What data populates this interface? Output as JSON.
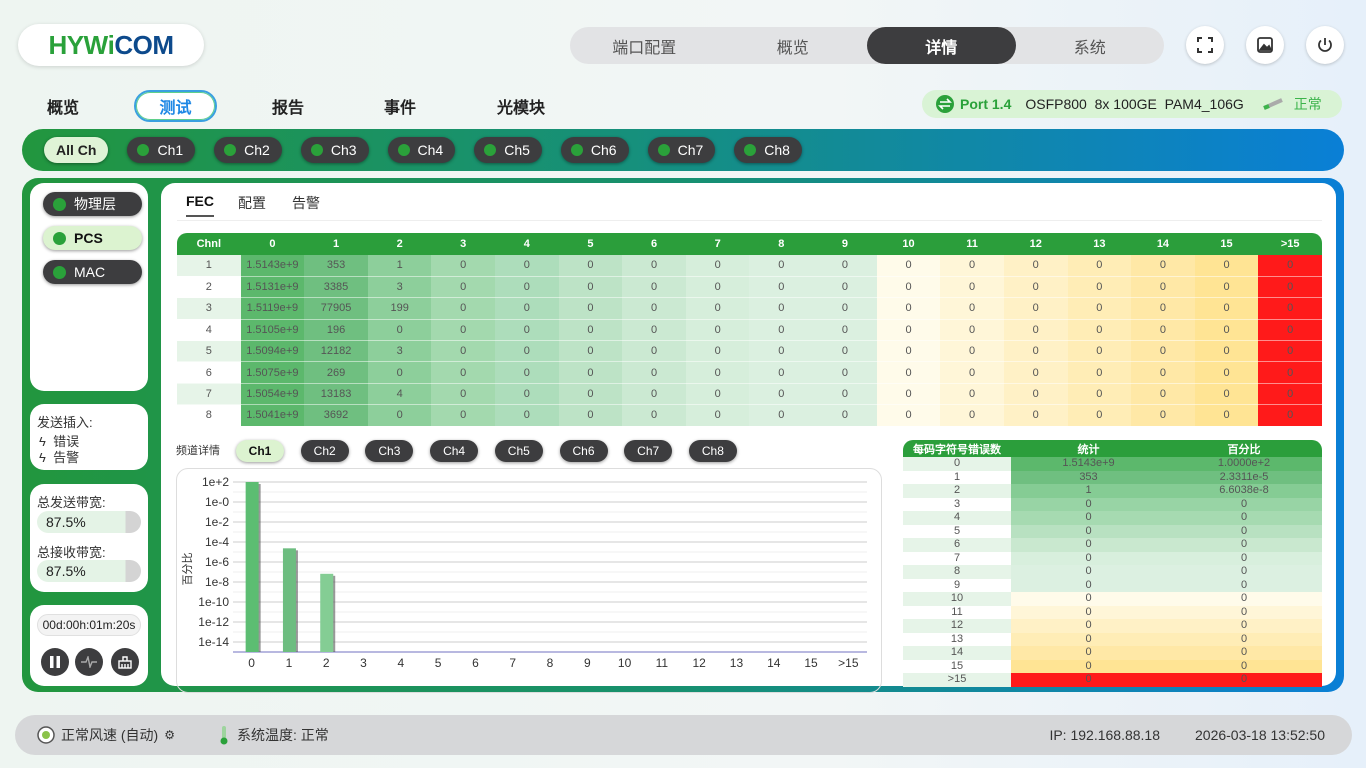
{
  "logo": {
    "text_a": "HYW",
    "text_b": "i",
    "text_c": "COM"
  },
  "top_nav": {
    "items": [
      "端口配置",
      "概览",
      "详情",
      "系统"
    ],
    "active": 2
  },
  "header_icons": [
    "fullscreen-icon",
    "screenshot-icon",
    "power-icon"
  ],
  "sub_tabs": {
    "items": [
      "概览",
      "测试",
      "报告",
      "事件",
      "光模块"
    ],
    "active": 1
  },
  "port": {
    "name": "Port 1.4",
    "module": "OSFP800  8x 100GE  PAM4_106G",
    "status": "正常",
    "status_color": "#3cb44b"
  },
  "channels": {
    "all": "All Ch",
    "items": [
      "Ch1",
      "Ch2",
      "Ch3",
      "Ch4",
      "Ch5",
      "Ch6",
      "Ch7",
      "Ch8"
    ]
  },
  "layers": {
    "items": [
      "物理层",
      "PCS",
      "MAC"
    ],
    "active": 1
  },
  "inject": {
    "title": "发送插入:",
    "items": [
      "错误",
      "告警"
    ]
  },
  "bandwidth": {
    "tx_label": "总发送带宽:",
    "tx_value": "87.5%",
    "rx_label": "总接收带宽:",
    "rx_value": "87.5%"
  },
  "timer": "00d:00h:01m:20s",
  "controls": [
    "pause-icon",
    "waveform-icon",
    "clear-icon"
  ],
  "fec_tabs": {
    "items": [
      "FEC",
      "配置",
      "告警"
    ],
    "active": 0
  },
  "fec_table": {
    "headers": [
      "Chnl",
      "0",
      "1",
      "2",
      "3",
      "4",
      "5",
      "6",
      "7",
      "8",
      "9",
      "10",
      "11",
      "12",
      "13",
      "14",
      "15",
      ">15"
    ],
    "rows": [
      [
        "1",
        "1.5143e+9",
        "353",
        "1",
        "0",
        "0",
        "0",
        "0",
        "0",
        "0",
        "0",
        "0",
        "0",
        "0",
        "0",
        "0",
        "0",
        "0"
      ],
      [
        "2",
        "1.5131e+9",
        "3385",
        "3",
        "0",
        "0",
        "0",
        "0",
        "0",
        "0",
        "0",
        "0",
        "0",
        "0",
        "0",
        "0",
        "0",
        "0"
      ],
      [
        "3",
        "1.5119e+9",
        "77905",
        "199",
        "0",
        "0",
        "0",
        "0",
        "0",
        "0",
        "0",
        "0",
        "0",
        "0",
        "0",
        "0",
        "0",
        "0"
      ],
      [
        "4",
        "1.5105e+9",
        "196",
        "0",
        "0",
        "0",
        "0",
        "0",
        "0",
        "0",
        "0",
        "0",
        "0",
        "0",
        "0",
        "0",
        "0",
        "0"
      ],
      [
        "5",
        "1.5094e+9",
        "12182",
        "3",
        "0",
        "0",
        "0",
        "0",
        "0",
        "0",
        "0",
        "0",
        "0",
        "0",
        "0",
        "0",
        "0",
        "0"
      ],
      [
        "6",
        "1.5075e+9",
        "269",
        "0",
        "0",
        "0",
        "0",
        "0",
        "0",
        "0",
        "0",
        "0",
        "0",
        "0",
        "0",
        "0",
        "0",
        "0"
      ],
      [
        "7",
        "1.5054e+9",
        "13183",
        "4",
        "0",
        "0",
        "0",
        "0",
        "0",
        "0",
        "0",
        "0",
        "0",
        "0",
        "0",
        "0",
        "0",
        "0"
      ],
      [
        "8",
        "1.5041e+9",
        "3692",
        "0",
        "0",
        "0",
        "0",
        "0",
        "0",
        "0",
        "0",
        "0",
        "0",
        "0",
        "0",
        "0",
        "0",
        "0"
      ]
    ],
    "column_colors": [
      "#5cb86c",
      "#6fbf80",
      "#8dcf9b",
      "#a3d9ae",
      "#add dbb",
      "#bde3c6",
      "#cbe9d2",
      "#d6eedb",
      "#dbf0e0",
      "#dbf0e0",
      "#fffbea",
      "#fff6d8",
      "#fff1c6",
      "#ffedb6",
      "#ffe8a6",
      "#ffe494",
      "#ff1a1a"
    ]
  },
  "detail": {
    "label": "频道详情",
    "channels": [
      "Ch1",
      "Ch2",
      "Ch3",
      "Ch4",
      "Ch5",
      "Ch6",
      "Ch7",
      "Ch8"
    ],
    "active": 0
  },
  "chart_data": {
    "type": "bar",
    "ylabel": "百分比",
    "yscale": "log",
    "ylim": [
      1e-15,
      100.0
    ],
    "yticks": [
      "1e+2",
      "1e-0",
      "1e-2",
      "1e-4",
      "1e-6",
      "1e-8",
      "1e-10",
      "1e-12",
      "1e-14"
    ],
    "categories": [
      "0",
      "1",
      "2",
      "3",
      "4",
      "5",
      "6",
      "7",
      "8",
      "9",
      "10",
      "11",
      "12",
      "13",
      "14",
      "15",
      ">15"
    ],
    "values": [
      100,
      2.3311e-05,
      6.6038e-08,
      0,
      0,
      0,
      0,
      0,
      0,
      0,
      0,
      0,
      0,
      0,
      0,
      0,
      0
    ],
    "grid": true,
    "bar_colors": [
      "#5cbd72",
      "#6dbd80",
      "#84cd94"
    ]
  },
  "dist_table": {
    "headers": [
      "每码字符号错误数",
      "统计",
      "百分比"
    ],
    "rows": [
      [
        "0",
        "1.5143e+9",
        "1.0000e+2"
      ],
      [
        "1",
        "353",
        "2.3311e-5"
      ],
      [
        "2",
        "1",
        "6.6038e-8"
      ],
      [
        "3",
        "0",
        "0"
      ],
      [
        "4",
        "0",
        "0"
      ],
      [
        "5",
        "0",
        "0"
      ],
      [
        "6",
        "0",
        "0"
      ],
      [
        "7",
        "0",
        "0"
      ],
      [
        "8",
        "0",
        "0"
      ],
      [
        "9",
        "0",
        "0"
      ],
      [
        "10",
        "0",
        "0"
      ],
      [
        "11",
        "0",
        "0"
      ],
      [
        "12",
        "0",
        "0"
      ],
      [
        "13",
        "0",
        "0"
      ],
      [
        "14",
        "0",
        "0"
      ],
      [
        "15",
        "0",
        "0"
      ],
      [
        ">15",
        "0",
        "0"
      ]
    ],
    "row_colors": [
      "#5cb86c",
      "#6fbf80",
      "#85cc94",
      "#98d4a5",
      "#a6dab1",
      "#b8e1c1",
      "#c9e8cf",
      "#d8efdd",
      "#dcf0e1",
      "#dcf0e1",
      "#fffbea",
      "#fff6d8",
      "#fff1c6",
      "#ffedb6",
      "#ffe8a6",
      "#ffe494",
      "#ff1a1a"
    ]
  },
  "footer": {
    "fan": "正常风速 (自动)",
    "temp": "系统温度: 正常",
    "ip": "IP: 192.168.88.18",
    "datetime": "2026-03-18 13:52:50"
  }
}
